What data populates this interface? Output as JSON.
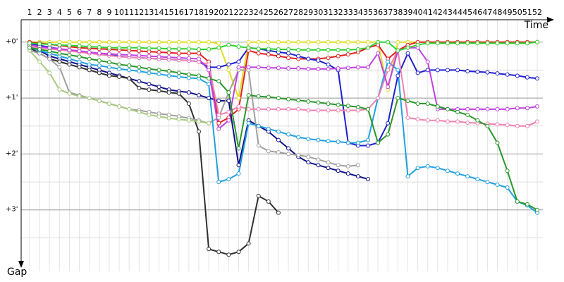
{
  "chart_data": {
    "type": "line",
    "x_label": "Time",
    "y_label": "Gap",
    "categories": [
      "1",
      "2",
      "3",
      "4",
      "5",
      "6",
      "7",
      "8",
      "9",
      "10",
      "11",
      "12",
      "13",
      "14",
      "15",
      "16",
      "17",
      "18",
      "19",
      "20",
      "21",
      "22",
      "23",
      "24",
      "25",
      "26",
      "27",
      "28",
      "29",
      "30",
      "31",
      "32",
      "33",
      "34",
      "35",
      "36",
      "37",
      "38",
      "39",
      "40",
      "41",
      "42",
      "43",
      "44",
      "45",
      "46",
      "47",
      "48",
      "49",
      "50",
      "51",
      "52"
    ],
    "ylim": [
      -0.4,
      4.1
    ],
    "yticks": [
      {
        "value": 0,
        "label": "+0'"
      },
      {
        "value": 1,
        "label": "+1'"
      },
      {
        "value": 2,
        "label": "+2'"
      },
      {
        "value": 3,
        "label": "+3'"
      }
    ],
    "minor_yticks": [
      0.5,
      1.5,
      2.5,
      3.5
    ],
    "grid": true,
    "inverted_y": true,
    "series": [
      {
        "color": "#dddd22",
        "values": [
          0,
          0,
          0,
          0,
          0,
          0,
          0,
          0,
          0,
          0,
          0,
          0,
          0,
          0,
          0,
          0,
          0,
          0,
          0,
          0.02,
          0.5,
          1.0,
          0,
          0,
          0,
          0,
          0,
          0,
          0,
          0,
          0,
          0,
          0,
          0,
          0,
          0,
          0.85,
          0,
          0,
          0,
          0,
          0,
          0,
          0,
          0,
          0,
          0,
          0,
          0,
          0,
          0,
          0
        ]
      },
      {
        "color": "#e02020",
        "values": [
          0,
          0.02,
          0.04,
          0.06,
          0.08,
          0.1,
          0.11,
          0.12,
          0.13,
          0.14,
          0.15,
          0.16,
          0.17,
          0.18,
          0.19,
          0.2,
          0.2,
          0.2,
          0.35,
          1.45,
          1.35,
          1.2,
          0.15,
          0.2,
          0.22,
          0.25,
          0.28,
          0.3,
          0.3,
          0.3,
          0.28,
          0.25,
          0.22,
          0.18,
          0.1,
          0.05,
          0.3,
          0.15,
          0.05,
          0,
          0,
          0,
          0,
          0,
          0,
          0,
          0,
          0,
          0,
          0,
          0,
          0
        ]
      },
      {
        "color": "#2020d0",
        "values": [
          0.03,
          0.06,
          0.09,
          0.12,
          0.15,
          0.17,
          0.19,
          0.21,
          0.23,
          0.25,
          0.27,
          0.28,
          0.29,
          0.3,
          0.31,
          0.32,
          0.33,
          0.35,
          0.45,
          0.45,
          0.4,
          0.35,
          0.1,
          0.12,
          0.15,
          0.18,
          0.2,
          0.25,
          0.3,
          0.33,
          0.4,
          0.5,
          1.8,
          1.85,
          1.85,
          1.8,
          1.45,
          0.6,
          0.2,
          0.55,
          0.5,
          0.5,
          0.5,
          0.5,
          0.52,
          0.53,
          0.54,
          0.56,
          0.58,
          0.6,
          0.63,
          0.65
        ]
      },
      {
        "color": "#10108a",
        "values": [
          0.1,
          0.15,
          0.25,
          0.3,
          0.35,
          0.4,
          0.45,
          0.5,
          0.55,
          0.6,
          0.65,
          0.7,
          0.75,
          0.8,
          0.85,
          0.88,
          0.9,
          0.95,
          1.0,
          1.05,
          1.05,
          2.2,
          1.4,
          1.5,
          1.6,
          1.75,
          1.9,
          2.05,
          2.15,
          2.2,
          2.25,
          2.3,
          2.35,
          2.4,
          2.45,
          null,
          null,
          null,
          null,
          null,
          null,
          null,
          null,
          null,
          null,
          null,
          null,
          null,
          null,
          null,
          null,
          null
        ]
      },
      {
        "color": "#303030",
        "values": [
          0.1,
          0.2,
          0.3,
          0.35,
          0.4,
          0.45,
          0.5,
          0.55,
          0.6,
          0.62,
          0.65,
          0.82,
          0.85,
          0.87,
          0.9,
          0.92,
          1.1,
          1.6,
          3.7,
          3.75,
          3.8,
          3.75,
          3.6,
          2.75,
          2.85,
          3.05,
          null,
          null,
          null,
          null,
          null,
          null,
          null,
          null,
          null,
          null,
          null,
          null,
          null,
          null,
          null,
          null,
          null,
          null,
          null,
          null,
          null,
          null,
          null,
          null,
          null,
          null
        ]
      },
      {
        "color": "#a0a0a0",
        "values": [
          0.15,
          0.2,
          0.3,
          0.45,
          0.9,
          0.95,
          1.0,
          1.05,
          1.1,
          1.15,
          1.2,
          1.22,
          1.25,
          1.28,
          1.3,
          1.33,
          1.36,
          1.4,
          1.45,
          1.35,
          0.9,
          0.5,
          0.5,
          1.85,
          1.95,
          1.97,
          2.0,
          2.02,
          2.05,
          2.1,
          2.15,
          2.2,
          2.22,
          2.2,
          null,
          null,
          null,
          null,
          null,
          null,
          null,
          null,
          null,
          null,
          null,
          null,
          null,
          null,
          null,
          null,
          null,
          null
        ]
      },
      {
        "color": "#a8c880",
        "values": [
          0.15,
          0.35,
          0.55,
          0.85,
          0.92,
          0.97,
          1.0,
          1.05,
          1.1,
          1.15,
          1.2,
          1.25,
          1.3,
          1.33,
          1.36,
          1.38,
          1.4,
          1.42,
          1.45,
          null,
          null,
          null,
          null,
          null,
          null,
          null,
          null,
          null,
          null,
          null,
          null,
          null,
          null,
          null,
          null,
          null,
          null,
          null,
          null,
          null,
          null,
          null,
          null,
          null,
          null,
          null,
          null,
          null,
          null,
          null,
          null,
          null
        ]
      },
      {
        "color": "#20a0e0",
        "values": [
          0.1,
          0.15,
          0.2,
          0.25,
          0.3,
          0.35,
          0.4,
          0.42,
          0.45,
          0.48,
          0.5,
          0.52,
          0.55,
          0.57,
          0.6,
          0.62,
          0.64,
          0.65,
          0.75,
          2.5,
          2.45,
          2.35,
          1.45,
          1.5,
          1.55,
          1.6,
          1.65,
          1.7,
          1.73,
          1.75,
          1.77,
          1.78,
          1.8,
          1.8,
          1.75,
          1.0,
          0.35,
          0.5,
          2.4,
          2.25,
          2.22,
          2.25,
          2.3,
          2.35,
          2.4,
          2.45,
          2.5,
          2.55,
          2.6,
          2.85,
          2.92,
          3.05
        ]
      },
      {
        "color": "#f080b0",
        "values": [
          0.08,
          0.1,
          0.12,
          0.14,
          0.16,
          0.18,
          0.2,
          0.22,
          0.24,
          0.26,
          0.27,
          0.28,
          0.29,
          0.3,
          0.31,
          0.32,
          0.33,
          0.35,
          0.4,
          1.3,
          1.25,
          1.15,
          1.2,
          1.2,
          1.2,
          1.2,
          1.2,
          1.2,
          1.22,
          1.22,
          1.22,
          1.22,
          1.22,
          1.22,
          1.2,
          1.0,
          0.5,
          0.15,
          1.35,
          1.38,
          1.4,
          1.4,
          1.42,
          1.42,
          1.44,
          1.45,
          1.46,
          1.47,
          1.48,
          1.5,
          1.5,
          1.42
        ]
      },
      {
        "color": "#c040e0",
        "values": [
          0.05,
          0.08,
          0.1,
          0.12,
          0.14,
          0.16,
          0.18,
          0.2,
          0.21,
          0.22,
          0.23,
          0.24,
          0.25,
          0.26,
          0.27,
          0.28,
          0.29,
          0.3,
          0.5,
          1.55,
          1.4,
          0.45,
          0.45,
          0.45,
          0.46,
          0.46,
          0.47,
          0.47,
          0.48,
          0.48,
          0.48,
          0.47,
          0.46,
          0.45,
          0.45,
          0.2,
          0.8,
          0.15,
          0.1,
          0.1,
          0.35,
          1.2,
          1.2,
          1.2,
          1.2,
          1.2,
          1.2,
          1.2,
          1.2,
          1.18,
          1.18,
          1.15
        ]
      },
      {
        "color": "#30d030",
        "values": [
          0.02,
          0.03,
          0.04,
          0.05,
          0.06,
          0.07,
          0.08,
          0.09,
          0.1,
          0.1,
          0.1,
          0.1,
          0.11,
          0.11,
          0.12,
          0.12,
          0.12,
          0.13,
          0.13,
          0.1,
          0.05,
          0.08,
          0.1,
          0.12,
          0.12,
          0.13,
          0.13,
          0.14,
          0.14,
          0.14,
          0.14,
          0.14,
          0.14,
          0.13,
          0.1,
          0.0,
          0.0,
          0.15,
          0.1,
          0.05,
          0.02,
          0.02,
          0.02,
          0.02,
          0.02,
          0.02,
          0.02,
          0.02,
          0.02,
          0.02,
          0.02,
          0.0
        ]
      },
      {
        "color": "#2a962a",
        "values": [
          0.1,
          0.13,
          0.16,
          0.2,
          0.23,
          0.26,
          0.3,
          0.33,
          0.36,
          0.4,
          0.42,
          0.45,
          0.48,
          0.5,
          0.52,
          0.55,
          0.58,
          0.6,
          0.65,
          0.7,
          0.9,
          1.9,
          0.95,
          0.97,
          0.98,
          1.0,
          1.02,
          1.04,
          1.06,
          1.08,
          1.1,
          1.12,
          1.14,
          1.16,
          1.2,
          1.8,
          1.65,
          1.0,
          1.05,
          1.1,
          1.1,
          1.15,
          1.2,
          1.25,
          1.3,
          1.4,
          1.5,
          1.8,
          2.3,
          2.85,
          2.9,
          3.0
        ]
      }
    ]
  }
}
